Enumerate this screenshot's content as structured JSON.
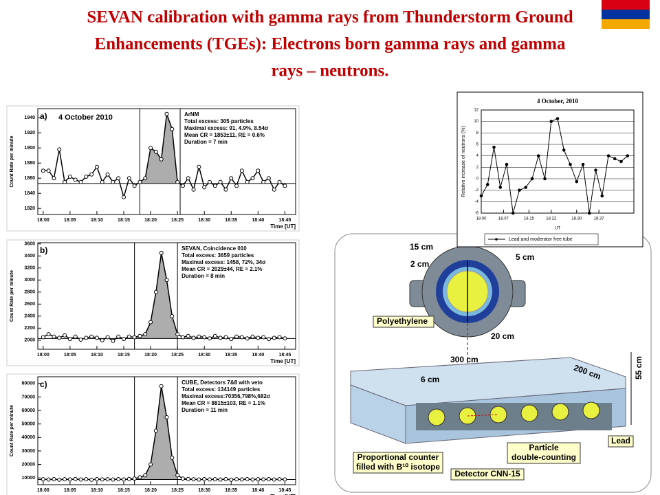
{
  "title_lines": [
    "SEVAN calibration with gamma rays from Thunderstorm Ground",
    "Enhancements (TGEs): Electrons born gamma rays and gamma",
    "rays – neutrons."
  ],
  "chart_data": [
    {
      "type": "line",
      "panel": "a)",
      "title": "4 October 2010",
      "y_label": "Count Rate per minute",
      "x_label": "Time [UT]",
      "annotations": [
        "ArNM",
        "Total excess: 305 particles",
        "Maximal excess: 91, 4.9%, 8.54σ",
        "Mean CR = 1853±11, RE = 0.6%",
        "Duration = 7 min"
      ],
      "x": [
        0,
        1,
        2,
        3,
        4,
        5,
        6,
        7,
        8,
        9,
        10,
        11,
        12,
        13,
        14,
        15,
        16,
        17,
        18,
        19,
        20,
        21,
        22,
        23,
        24,
        25,
        26,
        27,
        28,
        29,
        30,
        31,
        32,
        33,
        34,
        35,
        36,
        37,
        38,
        39,
        40,
        41,
        42,
        43,
        44,
        45
      ],
      "values": [
        1870,
        1870,
        1860,
        1898,
        1855,
        1862,
        1858,
        1855,
        1862,
        1865,
        1875,
        1855,
        1865,
        1855,
        1860,
        1835,
        1860,
        1850,
        1855,
        1860,
        1900,
        1895,
        1885,
        1945,
        1925,
        1855,
        1850,
        1860,
        1845,
        1875,
        1848,
        1855,
        1850,
        1855,
        1845,
        1860,
        1850,
        1870,
        1855,
        1860,
        1870,
        1855,
        1860,
        1845,
        1855,
        1850
      ],
      "baseline": 1853,
      "vlines": [
        18,
        25.5
      ],
      "xlim": [
        -1,
        47
      ],
      "ylim": [
        1812,
        1952
      ],
      "xticks": [
        {
          "value": 0,
          "label": "18:00"
        },
        {
          "value": 5,
          "label": "18:05"
        },
        {
          "value": 10,
          "label": "18:10"
        },
        {
          "value": 15,
          "label": "18:15"
        },
        {
          "value": 20,
          "label": "18:20"
        },
        {
          "value": 25,
          "label": "18:25"
        },
        {
          "value": 30,
          "label": "18:30"
        },
        {
          "value": 35,
          "label": "18:35"
        },
        {
          "value": 40,
          "label": "18:40"
        },
        {
          "value": 45,
          "label": "18:45"
        }
      ],
      "yticks": [
        1820,
        1840,
        1860,
        1880,
        1900,
        1920,
        1940
      ]
    },
    {
      "type": "line",
      "panel": "b)",
      "y_label": "Count Rate per minute",
      "x_label": "Time [UT]",
      "annotations": [
        "SEVAN, Coincidence 010",
        "Total excess: 3659 particles",
        "Maximal excess: 1458, 72%, 34σ",
        "Mean CR = 2029±44, RE = 2.1%",
        "Duration = 8 min"
      ],
      "x": [
        0,
        1,
        2,
        3,
        4,
        5,
        6,
        7,
        8,
        9,
        10,
        11,
        12,
        13,
        14,
        15,
        16,
        17,
        18,
        19,
        20,
        21,
        22,
        23,
        24,
        25,
        26,
        27,
        28,
        29,
        30,
        31,
        32,
        33,
        34,
        35,
        36,
        37,
        38,
        39,
        40,
        41,
        42,
        43,
        44,
        45
      ],
      "values": [
        2050,
        2100,
        2060,
        2040,
        2080,
        2020,
        2060,
        2010,
        2040,
        2060,
        2040,
        2000,
        2050,
        1990,
        2060,
        2020,
        2060,
        2050,
        2070,
        2100,
        2300,
        2800,
        3450,
        3000,
        2400,
        2100,
        2050,
        2070,
        2040,
        2060,
        2050,
        2030,
        2070,
        2040,
        2050,
        2020,
        2060,
        2050,
        2030,
        2060,
        2040,
        2050,
        2020,
        2040,
        2050,
        2030
      ],
      "baseline": 2029,
      "vlines": [
        17,
        25
      ],
      "xlim": [
        -1,
        47
      ],
      "ylim": [
        1850,
        3620
      ],
      "xticks": [
        {
          "value": 0,
          "label": "18:00"
        },
        {
          "value": 5,
          "label": "18:05"
        },
        {
          "value": 10,
          "label": "18:10"
        },
        {
          "value": 15,
          "label": "18:15"
        },
        {
          "value": 20,
          "label": "18:20"
        },
        {
          "value": 25,
          "label": "18:25"
        },
        {
          "value": 30,
          "label": "18:30"
        },
        {
          "value": 35,
          "label": "18:35"
        },
        {
          "value": 40,
          "label": "18:40"
        },
        {
          "value": 45,
          "label": "18:45"
        }
      ],
      "yticks": [
        2000,
        2200,
        2400,
        2600,
        2800,
        3000,
        3200,
        3400,
        3600
      ]
    },
    {
      "type": "line",
      "panel": "c)",
      "y_label": "Count Rate per minute",
      "x_label": "Time [UT]",
      "annotations": [
        "CUBE, Detectors 7&8 with veto",
        "Total excess: 134149 particles",
        "Maximal excess:70356,798%,682σ",
        "Mean CR = 8815±103, RE = 1.1%",
        "Duration = 11 min"
      ],
      "x": [
        0,
        1,
        2,
        3,
        4,
        5,
        6,
        7,
        8,
        9,
        10,
        11,
        12,
        13,
        14,
        15,
        16,
        17,
        18,
        19,
        20,
        21,
        22,
        23,
        24,
        25,
        26,
        27,
        28,
        29,
        30,
        31,
        32,
        33,
        34,
        35,
        36,
        37,
        38,
        39,
        40,
        41,
        42,
        43,
        44,
        45
      ],
      "values": [
        9000,
        8800,
        9100,
        8700,
        9000,
        8900,
        9200,
        8800,
        9000,
        8700,
        9100,
        8900,
        9000,
        8800,
        9100,
        8900,
        9200,
        9500,
        10500,
        12000,
        20000,
        45000,
        78000,
        55000,
        25000,
        12000,
        9500,
        9200,
        9000,
        8800,
        9100,
        8900,
        9000,
        8800,
        9100,
        8700,
        9000,
        8900,
        9100,
        8800,
        9000,
        8900,
        9100,
        8800,
        9000,
        8900
      ],
      "baseline": 8815,
      "vlines": [
        17,
        25
      ],
      "xlim": [
        -1,
        47
      ],
      "ylim": [
        5000,
        85000
      ],
      "xticks": [
        {
          "value": 0,
          "label": "18:00"
        },
        {
          "value": 5,
          "label": "18:05"
        },
        {
          "value": 10,
          "label": "18:10"
        },
        {
          "value": 15,
          "label": "18:15"
        },
        {
          "value": 20,
          "label": "18:20"
        },
        {
          "value": 25,
          "label": "18:25"
        },
        {
          "value": 30,
          "label": "18:30"
        },
        {
          "value": 35,
          "label": "18:35"
        },
        {
          "value": 40,
          "label": "18:40"
        },
        {
          "value": 45,
          "label": "18:45"
        }
      ],
      "yticks": [
        10000,
        20000,
        30000,
        40000,
        50000,
        60000,
        70000,
        80000
      ]
    },
    {
      "type": "line",
      "title": "4 October, 2010",
      "y_label": "Relative increase of neutrons (%)",
      "x_label": "UT",
      "grid": true,
      "x": [
        0,
        2,
        4,
        6,
        8,
        10,
        12,
        14,
        16,
        18,
        20,
        22,
        24,
        26,
        28,
        30,
        32,
        34,
        36,
        38,
        40,
        42,
        44,
        46
      ],
      "series": [
        {
          "name": "Lead and moderator free tube",
          "color": "#000000",
          "values": [
            -3,
            -1,
            5.5,
            -1.5,
            2.5,
            -6,
            -2,
            -1.5,
            0,
            4,
            0,
            10,
            10.5,
            5,
            2.5,
            -0.5,
            2.5,
            -6,
            1.5,
            -3,
            4,
            3.5,
            3,
            4
          ]
        }
      ],
      "xlim": [
        0,
        48
      ],
      "ylim": [
        -6,
        12
      ],
      "xticks": [
        {
          "value": 0,
          "label": "18.00"
        },
        {
          "value": 7,
          "label": "18.07"
        },
        {
          "value": 15,
          "label": "18.15"
        },
        {
          "value": 22,
          "label": "18.22"
        },
        {
          "value": 30,
          "label": "18.30"
        },
        {
          "value": 37,
          "label": "18.37"
        }
      ],
      "yticks": [
        -6,
        -4,
        -2,
        0,
        2,
        4,
        6,
        8,
        10,
        12
      ]
    }
  ],
  "diagram": {
    "labels": [
      "15 cm",
      "2 cm",
      "5 cm",
      "Polyethylene",
      "20 cm",
      "300 cm",
      "200 cm",
      "55 cm",
      "6 cm",
      "Lead",
      "Particle",
      "double-counting",
      "Proportional counter",
      "filled with B¹⁰ isotope",
      "Detector CNN-15"
    ]
  }
}
